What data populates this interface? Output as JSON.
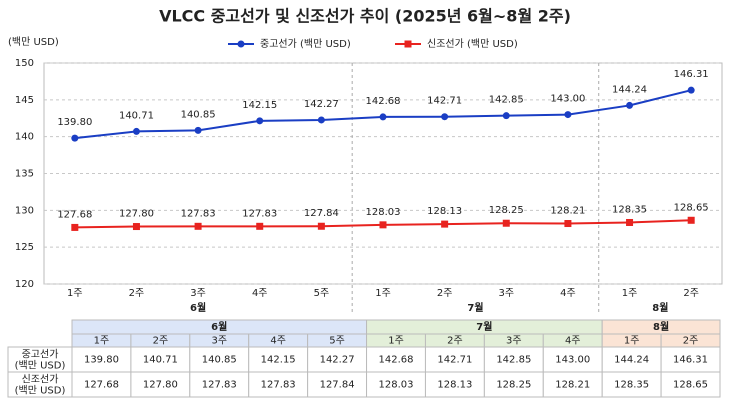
{
  "chart_data": {
    "type": "line",
    "title": "VLCC 중고선가 및 신조선가 추이 (2025년 6월~8월 2주)",
    "y_label": "(백만 USD)",
    "groups": [
      {
        "name": "6월",
        "categories": [
          "1주",
          "2주",
          "3주",
          "4주",
          "5주"
        ]
      },
      {
        "name": "7월",
        "categories": [
          "1주",
          "2주",
          "3주",
          "4주"
        ]
      },
      {
        "name": "8월",
        "categories": [
          "1주",
          "2주"
        ]
      }
    ],
    "series": [
      {
        "name": "중고선가 (백만 USD)",
        "color": "#1a3ec4",
        "values": [
          139.8,
          140.71,
          140.85,
          142.15,
          142.27,
          142.68,
          142.71,
          142.85,
          143.0,
          144.24,
          146.31
        ],
        "value_labels": [
          "139.80",
          "140.71",
          "140.85",
          "142.15",
          "142.27",
          "142.68",
          "142.71",
          "142.85",
          "143.00",
          "144.24",
          "146.31"
        ]
      },
      {
        "name": "신조선가 (백만 USD)",
        "color": "#e8231f",
        "values": [
          127.68,
          127.8,
          127.83,
          127.83,
          127.84,
          128.03,
          128.13,
          128.25,
          128.21,
          128.35,
          128.65
        ],
        "value_labels": [
          "127.68",
          "127.80",
          "127.83",
          "127.83",
          "127.84",
          "128.03",
          "128.13",
          "128.25",
          "128.21",
          "128.35",
          "128.65"
        ]
      }
    ],
    "ylim": [
      120,
      150
    ],
    "yticks": [
      120,
      125,
      130,
      135,
      140,
      145,
      150
    ],
    "grid": true,
    "legend": "top",
    "table": {
      "row_labels": [
        {
          "name": "중고선가",
          "unit": "(백만 USD)"
        },
        {
          "name": "신조선가",
          "unit": "(백만 USD)"
        }
      ],
      "group_styles": [
        {
          "fill": "#dce6f8",
          "color": "#1a3ec4"
        },
        {
          "fill": "#e3efd9",
          "color": "#2e7d32"
        },
        {
          "fill": "#fbe4d5",
          "color": "#e8601c"
        }
      ]
    }
  }
}
